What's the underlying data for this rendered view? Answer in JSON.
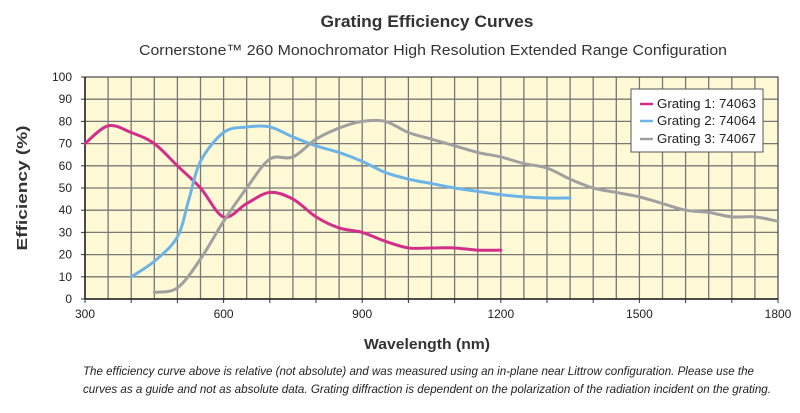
{
  "chart_data": {
    "type": "line",
    "title": "Grating Efficiency Curves",
    "subtitle": "Cornerstone™ 260 Monochromator High Resolution Extended Range Configuration",
    "xlabel": "Wavelength (nm)",
    "ylabel": "Efficiency (%)",
    "xlim": [
      300,
      1800
    ],
    "ylim": [
      0,
      100
    ],
    "xticks": [
      300,
      600,
      900,
      1200,
      1500,
      1800
    ],
    "yticks": [
      0,
      10,
      20,
      30,
      40,
      50,
      60,
      70,
      80,
      90,
      100
    ],
    "grid": true,
    "background_color": "#fff9d6",
    "legend_position": "top-right",
    "series": [
      {
        "name": "Grating 1: 74063",
        "color": "#d12f8a",
        "x": [
          300,
          350,
          400,
          450,
          500,
          550,
          600,
          650,
          700,
          750,
          800,
          850,
          900,
          950,
          1000,
          1050,
          1100,
          1150,
          1200
        ],
        "y": [
          70,
          78,
          75,
          70,
          60,
          50,
          37,
          43,
          48,
          45,
          37,
          32,
          30,
          26,
          23,
          23,
          23,
          22,
          22
        ]
      },
      {
        "name": "Grating 2: 74064",
        "color": "#6cb4e6",
        "x": [
          400,
          450,
          500,
          525,
          550,
          600,
          650,
          700,
          750,
          800,
          850,
          900,
          950,
          1000,
          1050,
          1100,
          1150,
          1200,
          1250,
          1300,
          1350
        ],
        "y": [
          10,
          17,
          28,
          45,
          62,
          75,
          77.5,
          77.5,
          73,
          69,
          66,
          62,
          57,
          54,
          52,
          50,
          48.5,
          47,
          46,
          45.5,
          45.5
        ]
      },
      {
        "name": "Grating 3: 74067",
        "color": "#a0a0a0",
        "x": [
          450,
          500,
          550,
          600,
          650,
          700,
          750,
          800,
          850,
          900,
          950,
          1000,
          1050,
          1100,
          1150,
          1200,
          1250,
          1300,
          1350,
          1400,
          1450,
          1500,
          1550,
          1600,
          1650,
          1700,
          1750,
          1800
        ],
        "y": [
          3,
          5,
          18,
          35,
          50,
          63,
          64,
          72,
          77,
          80,
          80,
          75,
          72,
          69,
          66,
          64,
          61,
          59,
          54,
          50,
          48,
          46,
          43,
          40,
          39,
          37,
          37,
          35
        ]
      }
    ]
  },
  "footnote": {
    "line1": "The efficiency curve above is relative (not absolute) and was measured using an in-plane near Littrow configuration.  Please use the",
    "line2": "curves as a guide and not as absolute data.  Grating diffraction is dependent on the polarization of the radiation incident on the grating."
  }
}
